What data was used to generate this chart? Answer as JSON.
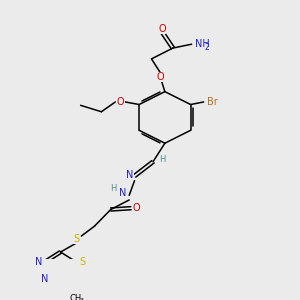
{
  "bg_color": "#ebebeb",
  "atom_colors": {
    "C": "#000000",
    "H": "#4a9090",
    "N": "#2020cc",
    "O": "#cc0000",
    "S": "#c8b400",
    "Br": "#b87020"
  },
  "figsize": [
    3.0,
    3.0
  ],
  "dpi": 100,
  "xlim": [
    0,
    10
  ],
  "ylim": [
    0,
    10
  ]
}
